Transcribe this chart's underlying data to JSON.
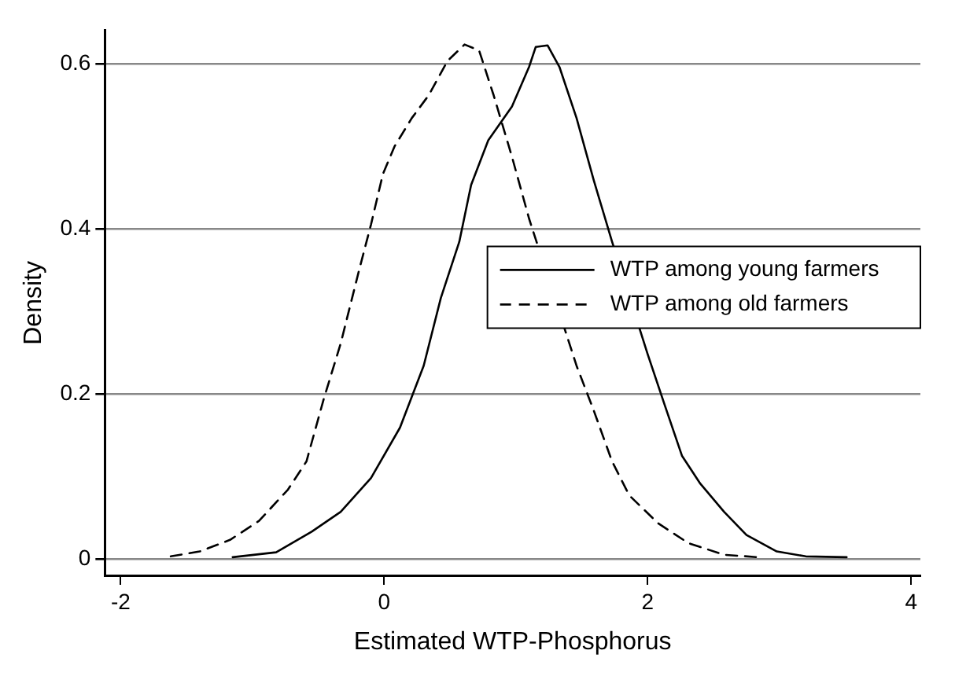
{
  "chart_data": {
    "type": "line",
    "xlabel": "Estimated WTP-Phosphorus",
    "ylabel": "Density",
    "xlim": [
      -2.12,
      4.07
    ],
    "ylim": [
      -0.02,
      0.64
    ],
    "xticks": [
      -2,
      0,
      2,
      4
    ],
    "yticks": [
      0,
      0.2,
      0.4,
      0.6
    ],
    "grid": "y",
    "legend": "right",
    "marker": "none",
    "series": [
      {
        "name": "WTP among young farmers",
        "color": "#000000",
        "line_style": "solid",
        "x": [
          -1.15,
          -0.82,
          -0.55,
          -0.33,
          -0.1,
          0.12,
          0.3,
          0.43,
          0.57,
          0.66,
          0.79,
          0.97,
          1.1,
          1.15,
          1.24,
          1.33,
          1.46,
          1.59,
          1.73,
          1.86,
          2.0,
          2.13,
          2.26,
          2.4,
          2.58,
          2.75,
          2.98,
          3.2,
          3.51
        ],
        "values": [
          0.002,
          0.008,
          0.033,
          0.057,
          0.098,
          0.159,
          0.234,
          0.316,
          0.384,
          0.453,
          0.507,
          0.548,
          0.596,
          0.62,
          0.622,
          0.596,
          0.534,
          0.459,
          0.384,
          null,
          0.248,
          0.186,
          0.125,
          0.091,
          0.057,
          0.029,
          0.009,
          0.003,
          0.002
        ]
      },
      {
        "name": "WTP among old farmers",
        "color": "#000000",
        "line_style": "dashed",
        "x": [
          -1.62,
          -1.4,
          -1.17,
          -0.95,
          -0.73,
          -0.59,
          -0.46,
          -0.33,
          -0.19,
          -0.1,
          -0.01,
          0.08,
          0.21,
          0.34,
          0.48,
          0.61,
          0.72,
          0.83,
          0.97,
          1.1,
          1.19,
          1.33,
          1.46,
          1.59,
          1.73,
          1.86,
          2.08,
          2.31,
          2.58,
          2.84
        ],
        "values": [
          0.003,
          0.009,
          0.023,
          0.046,
          0.084,
          0.118,
          0.193,
          0.261,
          0.35,
          0.405,
          0.466,
          0.5,
          0.534,
          0.562,
          0.603,
          0.623,
          0.616,
          0.562,
          0.487,
          0.412,
          null,
          null,
          0.234,
          0.18,
          0.118,
          0.077,
          0.043,
          0.019,
          0.005,
          0.002
        ]
      }
    ]
  }
}
